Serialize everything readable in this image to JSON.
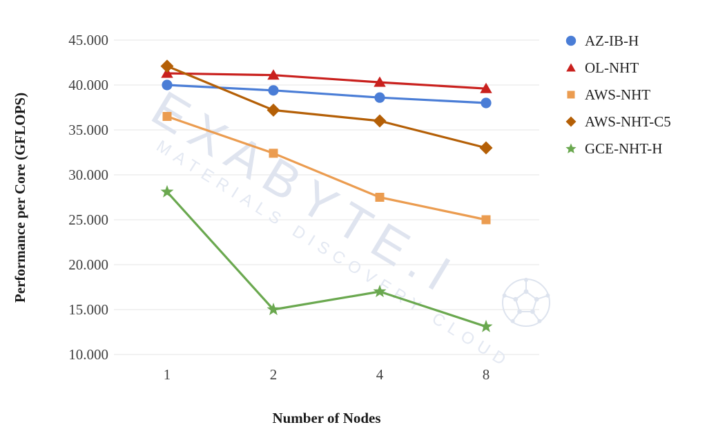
{
  "watermark": {
    "big_text": "EXABYTE.I",
    "small_text": "MATERIALS DISCOVERY CLOUD"
  },
  "colors": {
    "gridline": "#ededed",
    "tick_text": "#3f3f3f",
    "title_text": "#1a1a1a",
    "watermark": "#dfe4ef"
  },
  "chart_data": {
    "type": "line",
    "title": "",
    "xlabel": "Number of Nodes",
    "ylabel": "Performance per Core (GFLOPS)",
    "x": [
      1,
      2,
      4,
      8
    ],
    "xtick_labels": [
      "1",
      "2",
      "4",
      "8"
    ],
    "ytick_labels": [
      "45.000",
      "40.000",
      "35.000",
      "30.000",
      "25.000",
      "20.000",
      "15.000",
      "10.000"
    ],
    "ylim": [
      10.0,
      45.0
    ],
    "ytick_step": 5.0,
    "grid": "horizontal",
    "legend_position": "right",
    "x_axis_type": "categorical",
    "series": [
      {
        "name": "AZ-IB-H",
        "marker": "circle",
        "color": "#4a7dd6",
        "values": [
          40.0,
          39.4,
          38.6,
          38.0
        ]
      },
      {
        "name": "OL-NHT",
        "marker": "triangle",
        "color": "#c9201d",
        "values": [
          41.3,
          41.1,
          40.3,
          39.6
        ]
      },
      {
        "name": "AWS-NHT",
        "marker": "square",
        "color": "#eb9c50",
        "values": [
          36.5,
          32.4,
          27.5,
          25.0
        ]
      },
      {
        "name": "AWS-NHT-C5",
        "marker": "diamond",
        "color": "#b45f06",
        "values": [
          42.1,
          37.2,
          36.0,
          33.0
        ]
      },
      {
        "name": "GCE-NHT-H",
        "marker": "star",
        "color": "#6aa84f",
        "values": [
          28.1,
          15.0,
          17.0,
          13.1
        ]
      }
    ]
  }
}
